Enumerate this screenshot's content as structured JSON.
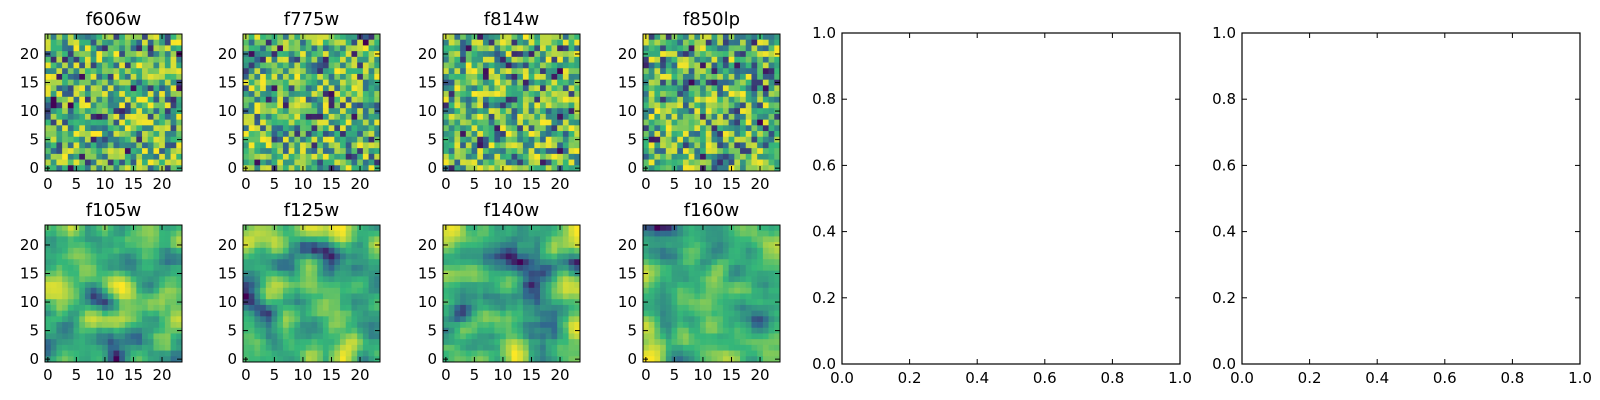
{
  "chart_data": [
    {
      "type": "heatmap",
      "title": "f606w",
      "rows": 24,
      "cols": 24,
      "x_ticks": [
        "0",
        "5",
        "10",
        "15",
        "20"
      ],
      "y_ticks": [
        "0",
        "5",
        "10",
        "15",
        "20"
      ],
      "xlim": [
        -0.5,
        23.5
      ],
      "ylim": [
        -0.5,
        23.5
      ],
      "colormap": [
        "#440154",
        "#31688e",
        "#35b779",
        "#fde725"
      ],
      "texture": "fine"
    },
    {
      "type": "heatmap",
      "title": "f775w",
      "rows": 24,
      "cols": 24,
      "x_ticks": [
        "0",
        "5",
        "10",
        "15",
        "20"
      ],
      "y_ticks": [
        "0",
        "5",
        "10",
        "15",
        "20"
      ],
      "xlim": [
        -0.5,
        23.5
      ],
      "ylim": [
        -0.5,
        23.5
      ],
      "colormap": [
        "#440154",
        "#31688e",
        "#35b779",
        "#fde725"
      ],
      "texture": "fine"
    },
    {
      "type": "heatmap",
      "title": "f814w",
      "rows": 24,
      "cols": 24,
      "x_ticks": [
        "0",
        "5",
        "10",
        "15",
        "20"
      ],
      "y_ticks": [
        "0",
        "5",
        "10",
        "15",
        "20"
      ],
      "xlim": [
        -0.5,
        23.5
      ],
      "ylim": [
        -0.5,
        23.5
      ],
      "colormap": [
        "#440154",
        "#31688e",
        "#35b779",
        "#fde725"
      ],
      "texture": "fine"
    },
    {
      "type": "heatmap",
      "title": "f850lp",
      "rows": 24,
      "cols": 24,
      "x_ticks": [
        "0",
        "5",
        "10",
        "15",
        "20"
      ],
      "y_ticks": [
        "0",
        "5",
        "10",
        "15",
        "20"
      ],
      "xlim": [
        -0.5,
        23.5
      ],
      "ylim": [
        -0.5,
        23.5
      ],
      "colormap": [
        "#440154",
        "#31688e",
        "#35b779",
        "#fde725"
      ],
      "texture": "fine"
    },
    {
      "type": "line",
      "title": "",
      "xlim": [
        0.0,
        1.0
      ],
      "ylim": [
        0.0,
        1.0
      ],
      "x_ticks": [
        "0.0",
        "0.2",
        "0.4",
        "0.6",
        "0.8",
        "1.0"
      ],
      "y_ticks": [
        "0.0",
        "0.2",
        "0.4",
        "0.6",
        "0.8",
        "1.0"
      ],
      "series": []
    },
    {
      "type": "line",
      "title": "",
      "xlim": [
        0.0,
        1.0
      ],
      "ylim": [
        0.0,
        1.0
      ],
      "x_ticks": [
        "0.0",
        "0.2",
        "0.4",
        "0.6",
        "0.8",
        "1.0"
      ],
      "y_ticks": [
        "0.0",
        "0.2",
        "0.4",
        "0.6",
        "0.8",
        "1.0"
      ],
      "series": []
    },
    {
      "type": "heatmap",
      "title": "f105w",
      "rows": 24,
      "cols": 24,
      "x_ticks": [
        "0",
        "5",
        "10",
        "15",
        "20"
      ],
      "y_ticks": [
        "0",
        "5",
        "10",
        "15",
        "20"
      ],
      "xlim": [
        -0.5,
        23.5
      ],
      "ylim": [
        -0.5,
        23.5
      ],
      "colormap": [
        "#440154",
        "#31688e",
        "#35b779",
        "#fde725"
      ],
      "texture": "smooth"
    },
    {
      "type": "heatmap",
      "title": "f125w",
      "rows": 24,
      "cols": 24,
      "x_ticks": [
        "0",
        "5",
        "10",
        "15",
        "20"
      ],
      "y_ticks": [
        "0",
        "5",
        "10",
        "15",
        "20"
      ],
      "xlim": [
        -0.5,
        23.5
      ],
      "ylim": [
        -0.5,
        23.5
      ],
      "colormap": [
        "#440154",
        "#31688e",
        "#35b779",
        "#fde725"
      ],
      "texture": "smooth"
    },
    {
      "type": "heatmap",
      "title": "f140w",
      "rows": 24,
      "cols": 24,
      "x_ticks": [
        "0",
        "5",
        "10",
        "15",
        "20"
      ],
      "y_ticks": [
        "0",
        "5",
        "10",
        "15",
        "20"
      ],
      "xlim": [
        -0.5,
        23.5
      ],
      "ylim": [
        -0.5,
        23.5
      ],
      "colormap": [
        "#440154",
        "#31688e",
        "#35b779",
        "#fde725"
      ],
      "texture": "smooth"
    },
    {
      "type": "heatmap",
      "title": "f160w",
      "rows": 24,
      "cols": 24,
      "x_ticks": [
        "0",
        "5",
        "10",
        "15",
        "20"
      ],
      "y_ticks": [
        "0",
        "5",
        "10",
        "15",
        "20"
      ],
      "xlim": [
        -0.5,
        23.5
      ],
      "ylim": [
        -0.5,
        23.5
      ],
      "colormap": [
        "#440154",
        "#31688e",
        "#35b779",
        "#fde725"
      ],
      "texture": "smooth"
    }
  ]
}
